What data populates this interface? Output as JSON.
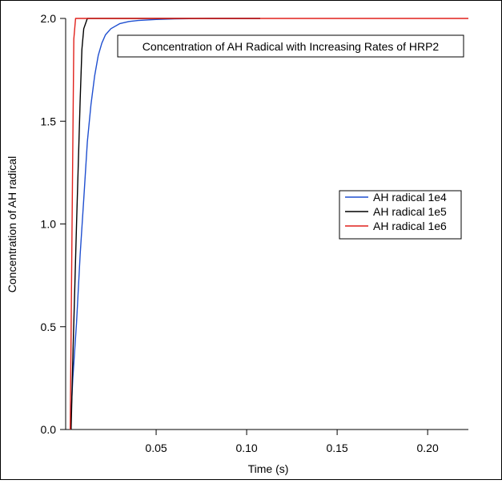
{
  "chart_data": {
    "type": "line",
    "title": "Concentration of AH Radical with Increasing Rates of HRP2",
    "xlabel": "Time (s)",
    "ylabel": "Concentration of AH radical",
    "xlim": [
      0.0,
      0.2225
    ],
    "ylim": [
      0.0,
      2.0
    ],
    "x_ticks": [
      0.05,
      0.1,
      0.15,
      0.2
    ],
    "x_tick_labels": [
      "0.05",
      "0.10",
      "0.15",
      "0.20"
    ],
    "y_ticks": [
      0.0,
      0.5,
      1.0,
      1.5,
      2.0
    ],
    "y_tick_labels": [
      "0.0",
      "0.5",
      "1.0",
      "1.5",
      "2.0"
    ],
    "grid": false,
    "legend_position": "right-middle",
    "series": [
      {
        "name": "AH radical 1e4",
        "color": "#1f4fd0",
        "x": [
          0.0025,
          0.004,
          0.006,
          0.008,
          0.01,
          0.012,
          0.014,
          0.016,
          0.018,
          0.02,
          0.022,
          0.025,
          0.03,
          0.035,
          0.04,
          0.05,
          0.06,
          0.08,
          0.1075
        ],
        "y": [
          0.0,
          0.25,
          0.52,
          0.85,
          1.12,
          1.4,
          1.58,
          1.72,
          1.82,
          1.88,
          1.92,
          1.95,
          1.975,
          1.985,
          1.99,
          1.995,
          1.998,
          2.0,
          2.0
        ]
      },
      {
        "name": "AH radical 1e5",
        "color": "#000000",
        "x": [
          0.003,
          0.004,
          0.006,
          0.008,
          0.009,
          0.01,
          0.012,
          0.014,
          0.02,
          0.1075
        ],
        "y": [
          0.0,
          0.35,
          1.0,
          1.6,
          1.85,
          1.95,
          2.0,
          2.0,
          2.0,
          2.0
        ]
      },
      {
        "name": "AH radical 1e6",
        "color": "#e0201b",
        "x": [
          0.0025,
          0.0035,
          0.0045,
          0.0055,
          0.0065,
          0.0075,
          0.0085,
          0.01,
          0.2225
        ],
        "y": [
          0.0,
          0.95,
          1.9,
          2.0,
          2.0,
          2.0,
          2.0,
          2.0,
          2.0
        ]
      }
    ]
  }
}
